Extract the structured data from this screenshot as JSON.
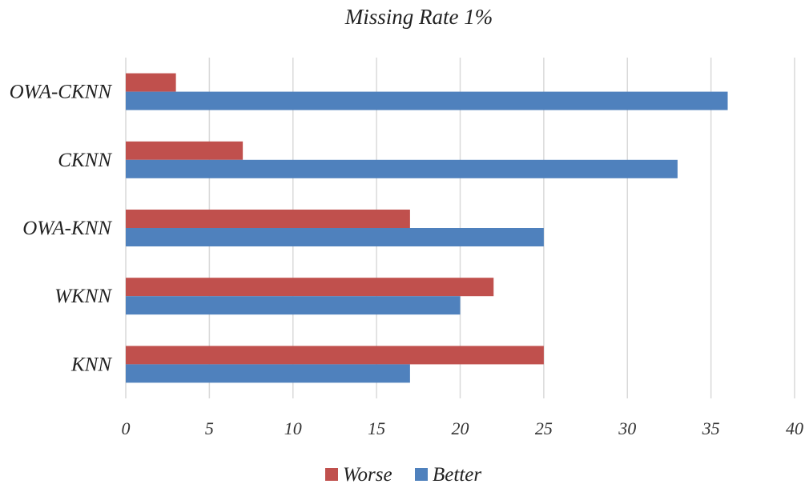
{
  "chart_data": {
    "type": "bar",
    "orientation": "horizontal",
    "title": "Missing Rate 1%",
    "xlabel": "",
    "ylabel": "",
    "categories": [
      "OWA-CKNN",
      "CKNN",
      "OWA-KNN",
      "WKNN",
      "KNN"
    ],
    "series": [
      {
        "name": "Worse",
        "color": "#c0504d",
        "values": [
          3,
          7,
          17,
          22,
          25
        ]
      },
      {
        "name": "Better",
        "color": "#4f81bd",
        "values": [
          36,
          33,
          25,
          20,
          17
        ]
      }
    ],
    "xlim": [
      0,
      40
    ],
    "xticks": [
      "0",
      "5",
      "10",
      "15",
      "20",
      "25",
      "30",
      "35",
      "40"
    ],
    "grid": true,
    "legend_position": "bottom"
  }
}
